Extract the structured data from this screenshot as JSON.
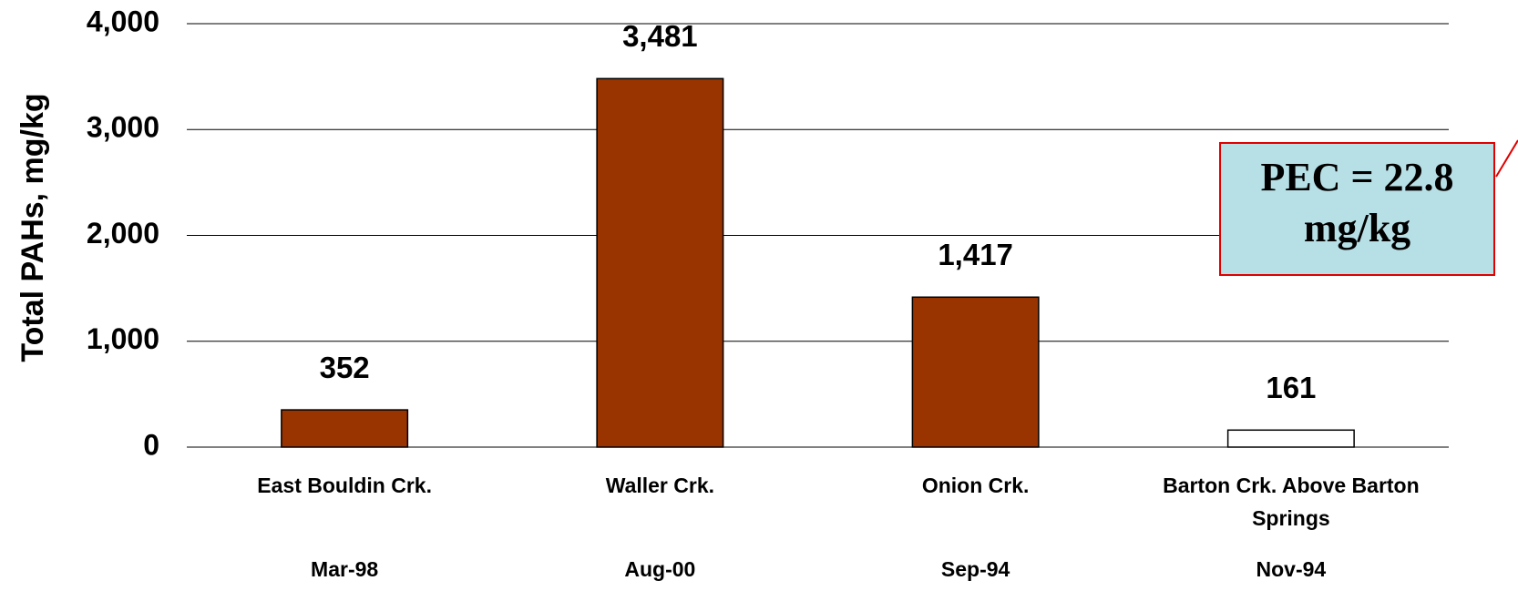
{
  "chart_data": {
    "type": "bar",
    "y_label": "Total PAHs, mg/kg",
    "categories": [
      "East Bouldin Crk.",
      "Waller Crk.",
      "Onion Crk.",
      "Barton Crk. Above Barton Springs"
    ],
    "dates": [
      "Mar-98",
      "Aug-00",
      "Sep-94",
      "Nov-94"
    ],
    "values": [
      352,
      3481,
      1417,
      161
    ],
    "value_labels": [
      "352",
      "3,481",
      "1,417",
      "161"
    ],
    "colors": [
      "#993300",
      "#993300",
      "#993300",
      "#ffffff"
    ],
    "ylim": [
      0,
      4000
    ],
    "yticks": [
      0,
      {
        "value": 1000,
        "label": "1,000"
      },
      {
        "value": 2000,
        "label": "2,000"
      },
      {
        "value": 3000,
        "label": "3,000"
      },
      {
        "value": 4000,
        "label": "4,000"
      }
    ],
    "grid": true,
    "annotation": [
      "PEC = 22.8",
      "mg/kg"
    ]
  }
}
